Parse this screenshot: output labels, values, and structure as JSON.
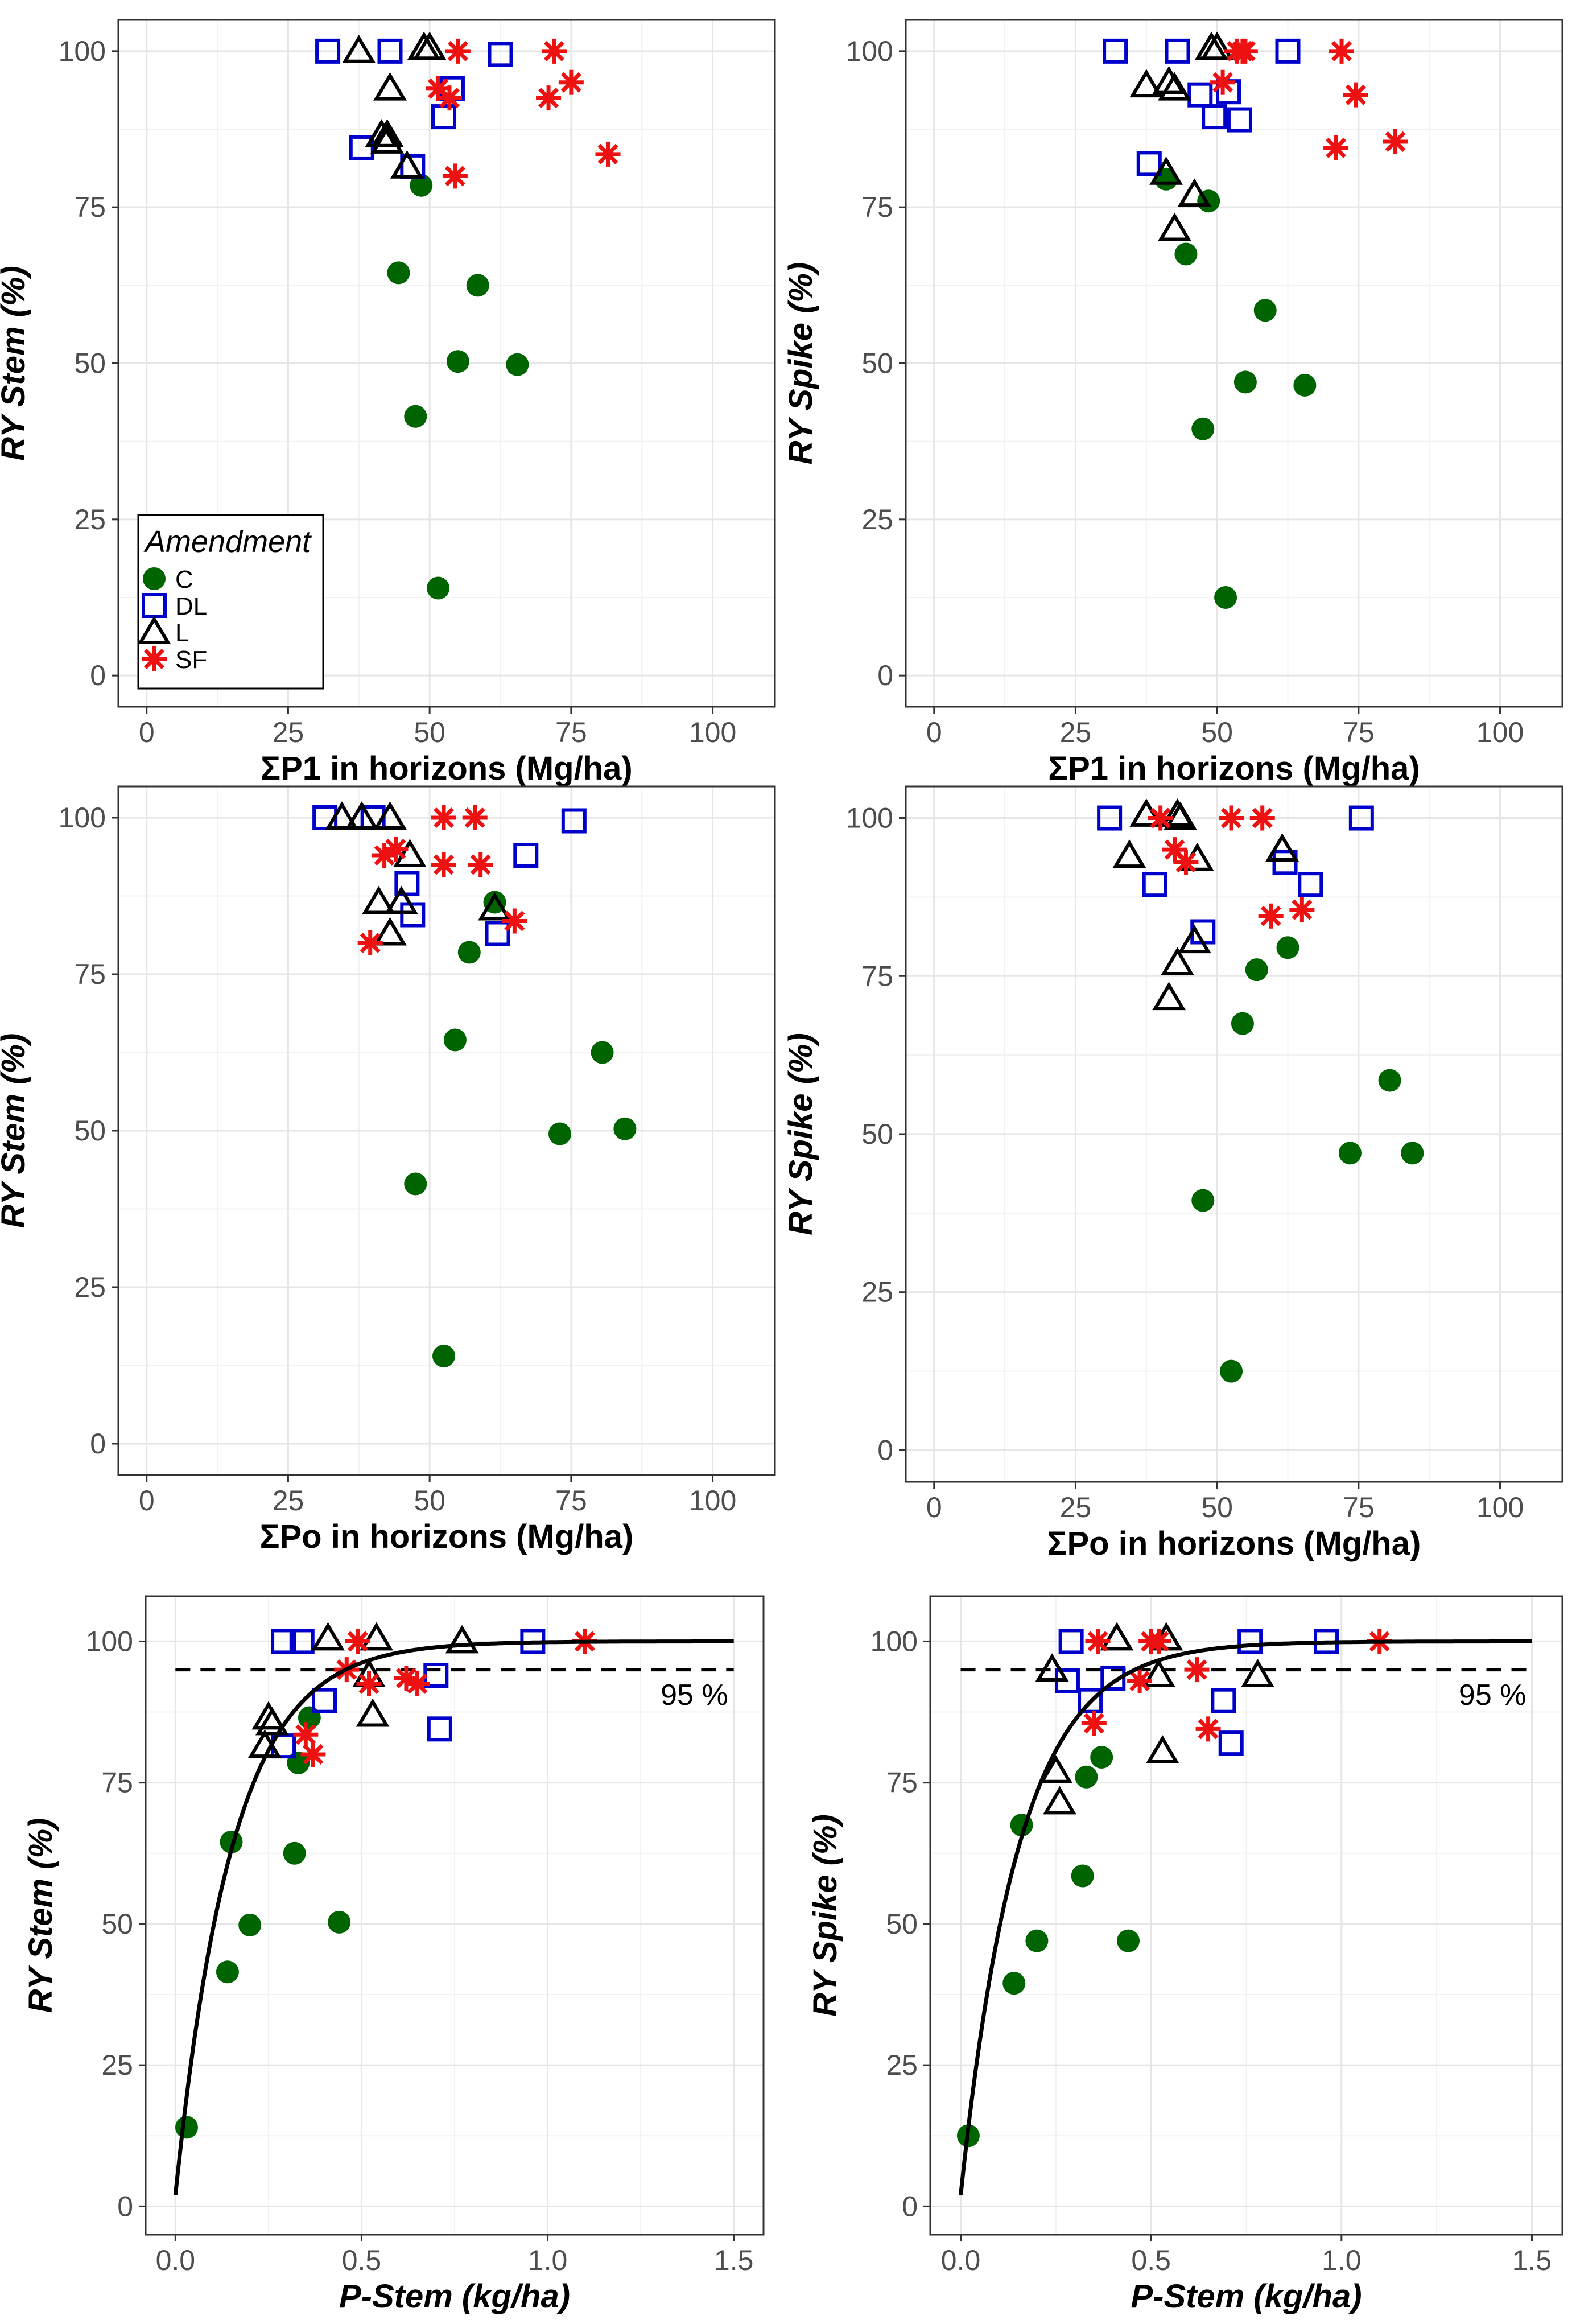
{
  "colors": {
    "C": "#006400",
    "DL": "#0000cd",
    "L": "#000000",
    "SF": "#ee1111"
  },
  "legend": {
    "title": "Amendment",
    "entries": [
      {
        "key": "C",
        "label": "C",
        "shape": "circle"
      },
      {
        "key": "DL",
        "label": "DL",
        "shape": "square"
      },
      {
        "key": "L",
        "label": "L",
        "shape": "triangle"
      },
      {
        "key": "SF",
        "label": "SF",
        "shape": "asterisk"
      }
    ]
  },
  "chart_data": [
    {
      "id": "p1-stem",
      "type": "scatter",
      "ylabel": "RY Stem (%)",
      "xlabel": "ΣP1 in horizons (Mg/ha)",
      "xlim": [
        -5,
        111
      ],
      "ylim": [
        -5,
        105
      ],
      "xticks": [
        0,
        25,
        50,
        75,
        100
      ],
      "xtick_labels": [
        "0",
        "25",
        "50",
        "75",
        "100"
      ],
      "yticks": [
        0,
        25,
        50,
        75,
        100
      ],
      "ytick_labels": [
        "0",
        "25",
        "50",
        "75",
        "100"
      ],
      "show_legend": true,
      "series": {
        "C": [
          [
            48.5,
            78.5
          ],
          [
            44.5,
            64.5
          ],
          [
            58.5,
            62.5
          ],
          [
            55,
            50.3
          ],
          [
            65.5,
            49.8
          ],
          [
            47.5,
            41.5
          ],
          [
            51.5,
            14
          ]
        ],
        "DL": [
          [
            32,
            100
          ],
          [
            43,
            100
          ],
          [
            62.5,
            99.5
          ],
          [
            54,
            94
          ],
          [
            52.5,
            89.5
          ],
          [
            38,
            84.5
          ],
          [
            47,
            81.5
          ]
        ],
        "L": [
          [
            37.5,
            100
          ],
          [
            49,
            100.5
          ],
          [
            50,
            100.5
          ],
          [
            43,
            94
          ],
          [
            41.5,
            86.5
          ],
          [
            42.5,
            86.5
          ],
          [
            42.5,
            85.5
          ],
          [
            46,
            81.5
          ]
        ],
        "SF": [
          [
            55,
            100
          ],
          [
            72,
            100
          ],
          [
            51.5,
            94
          ],
          [
            53.5,
            92.5
          ],
          [
            75,
            95
          ],
          [
            71,
            92.5
          ],
          [
            54.5,
            80
          ],
          [
            81.5,
            83.5
          ]
        ]
      }
    },
    {
      "id": "p1-spike",
      "type": "scatter",
      "ylabel": "RY Spike (%)",
      "xlabel": "ΣP1 in horizons (Mg/ha)",
      "xlim": [
        -5,
        111
      ],
      "ylim": [
        -5,
        105
      ],
      "xticks": [
        0,
        25,
        50,
        75,
        100
      ],
      "xtick_labels": [
        "0",
        "25",
        "50",
        "75",
        "100"
      ],
      "yticks": [
        0,
        25,
        50,
        75,
        100
      ],
      "ytick_labels": [
        "0",
        "25",
        "50",
        "75",
        "100"
      ],
      "show_legend": false,
      "series": {
        "C": [
          [
            41,
            79.5
          ],
          [
            48.5,
            76
          ],
          [
            44.5,
            67.5
          ],
          [
            58.5,
            58.5
          ],
          [
            55,
            47
          ],
          [
            65.5,
            46.5
          ],
          [
            47.5,
            39.5
          ],
          [
            51.5,
            12.5
          ]
        ],
        "DL": [
          [
            32,
            100
          ],
          [
            43,
            100
          ],
          [
            62.5,
            100
          ],
          [
            52,
            93.5
          ],
          [
            47,
            93
          ],
          [
            49.5,
            89.5
          ],
          [
            54,
            89
          ],
          [
            38,
            82
          ]
        ],
        "L": [
          [
            49,
            100.5
          ],
          [
            50,
            100.5
          ],
          [
            37.5,
            94.5
          ],
          [
            41.5,
            95
          ],
          [
            42.5,
            94
          ],
          [
            41,
            80.5
          ],
          [
            46,
            77
          ],
          [
            42.5,
            71.5
          ]
        ],
        "SF": [
          [
            53.5,
            100
          ],
          [
            54.5,
            100
          ],
          [
            55,
            100
          ],
          [
            72,
            100
          ],
          [
            51,
            95
          ],
          [
            74.5,
            93
          ],
          [
            71,
            84.5
          ],
          [
            81.5,
            85.5
          ]
        ]
      }
    },
    {
      "id": "po-stem",
      "type": "scatter",
      "ylabel": "RY Stem (%)",
      "xlabel": "ΣPo in horizons (Mg/ha)",
      "xlim": [
        -5,
        111
      ],
      "ylim": [
        -5,
        105
      ],
      "xticks": [
        0,
        25,
        50,
        75,
        100
      ],
      "xtick_labels": [
        "0",
        "25",
        "50",
        "75",
        "100"
      ],
      "yticks": [
        0,
        25,
        50,
        75,
        100
      ],
      "ytick_labels": [
        "0",
        "25",
        "50",
        "75",
        "100"
      ],
      "show_legend": false,
      "series": {
        "C": [
          [
            61.5,
            86.5
          ],
          [
            57,
            78.5
          ],
          [
            54.5,
            64.5
          ],
          [
            80.5,
            62.5
          ],
          [
            73,
            49.5
          ],
          [
            84.5,
            50.3
          ],
          [
            47.5,
            41.5
          ],
          [
            52.5,
            14
          ]
        ],
        "DL": [
          [
            31.5,
            100
          ],
          [
            40,
            100
          ],
          [
            75.5,
            99.5
          ],
          [
            67,
            94
          ],
          [
            46,
            89.5
          ],
          [
            47,
            84.5
          ],
          [
            62,
            81.5
          ]
        ],
        "L": [
          [
            34.5,
            100
          ],
          [
            38,
            100
          ],
          [
            43,
            100
          ],
          [
            46.5,
            94
          ],
          [
            41,
            86.5
          ],
          [
            45,
            86.5
          ],
          [
            61.5,
            85.5
          ],
          [
            43,
            81.5
          ]
        ],
        "SF": [
          [
            52.5,
            100
          ],
          [
            58,
            100
          ],
          [
            44,
            95
          ],
          [
            42,
            94
          ],
          [
            52.5,
            92.5
          ],
          [
            59,
            92.5
          ],
          [
            65,
            83.5
          ],
          [
            39.5,
            80
          ]
        ]
      }
    },
    {
      "id": "po-spike",
      "type": "scatter",
      "ylabel": "RY Spike (%)",
      "xlabel": "ΣPo in horizons (Mg/ha)",
      "xlim": [
        -5,
        111
      ],
      "ylim": [
        -5,
        105
      ],
      "xticks": [
        0,
        25,
        50,
        75,
        100
      ],
      "xtick_labels": [
        "0",
        "25",
        "50",
        "75",
        "100"
      ],
      "yticks": [
        0,
        25,
        50,
        75,
        100
      ],
      "ytick_labels": [
        "0",
        "25",
        "50",
        "75",
        "100"
      ],
      "show_legend": false,
      "series": {
        "C": [
          [
            62.5,
            79.5
          ],
          [
            57,
            76
          ],
          [
            54.5,
            67.5
          ],
          [
            80.5,
            58.5
          ],
          [
            73.5,
            47
          ],
          [
            84.5,
            47
          ],
          [
            47.5,
            39.5
          ],
          [
            52.5,
            12.5
          ]
        ],
        "DL": [
          [
            31,
            100
          ],
          [
            75.5,
            100
          ],
          [
            62,
            93
          ],
          [
            66.5,
            89.5
          ],
          [
            39,
            89.5
          ],
          [
            47.5,
            82
          ]
        ],
        "L": [
          [
            37.5,
            100.5
          ],
          [
            43,
            100.5
          ],
          [
            43.5,
            100
          ],
          [
            34.5,
            94
          ],
          [
            46.5,
            93.5
          ],
          [
            61.5,
            95
          ],
          [
            46,
            80.5
          ],
          [
            43,
            77
          ],
          [
            41.5,
            71.5
          ]
        ],
        "SF": [
          [
            40,
            100
          ],
          [
            52.5,
            100
          ],
          [
            58,
            100
          ],
          [
            42.5,
            95
          ],
          [
            44.5,
            93
          ],
          [
            59.5,
            84.5
          ],
          [
            65,
            85.5
          ]
        ]
      }
    },
    {
      "id": "pstem-stem",
      "type": "scatter",
      "ylabel": "RY Stem (%)",
      "xlabel": "P-Stem (kg/ha)",
      "xlim": [
        -0.08,
        1.58
      ],
      "ylim": [
        -5,
        108
      ],
      "xticks": [
        0,
        0.5,
        1,
        1.5
      ],
      "xtick_labels": [
        "0.0",
        "0.5",
        "1.0",
        "1.5"
      ],
      "yticks": [
        0,
        25,
        50,
        75,
        100
      ],
      "ytick_labels": [
        "0",
        "25",
        "50",
        "75",
        "100"
      ],
      "show_legend": false,
      "threshold": {
        "y": 95,
        "label": "95 %"
      },
      "fit_curve": {
        "model": "exponential plateau",
        "y_max": 100,
        "y0": 2,
        "k": 6.5,
        "x_range": [
          0,
          1.5
        ]
      },
      "series": {
        "C": [
          [
            0.03,
            14
          ],
          [
            0.14,
            41.5
          ],
          [
            0.15,
            64.5
          ],
          [
            0.2,
            49.8
          ],
          [
            0.32,
            62.5
          ],
          [
            0.44,
            50.3
          ],
          [
            0.33,
            78.5
          ],
          [
            0.36,
            86.5
          ]
        ],
        "DL": [
          [
            0.29,
            100
          ],
          [
            0.34,
            100
          ],
          [
            0.96,
            100
          ],
          [
            0.4,
            89.5
          ],
          [
            0.29,
            81.5
          ],
          [
            0.7,
            94
          ],
          [
            0.71,
            84.5
          ]
        ],
        "L": [
          [
            0.41,
            100.5
          ],
          [
            0.54,
            100.5
          ],
          [
            0.77,
            100
          ],
          [
            0.25,
            86.5
          ],
          [
            0.26,
            85.5
          ],
          [
            0.24,
            81.5
          ],
          [
            0.52,
            94
          ],
          [
            0.53,
            87
          ]
        ],
        "SF": [
          [
            0.49,
            100
          ],
          [
            1.1,
            100
          ],
          [
            0.46,
            95
          ],
          [
            0.52,
            92.5
          ],
          [
            0.62,
            93.5
          ],
          [
            0.65,
            92.5
          ],
          [
            0.35,
            83.5
          ],
          [
            0.37,
            80
          ]
        ]
      }
    },
    {
      "id": "pstem-spike",
      "type": "scatter",
      "ylabel": "RY Spike (%)",
      "xlabel": "P-Stem (kg/ha)",
      "xlim": [
        -0.08,
        1.58
      ],
      "ylim": [
        -5,
        108
      ],
      "xticks": [
        0,
        0.5,
        1,
        1.5
      ],
      "xtick_labels": [
        "0.0",
        "0.5",
        "1.0",
        "1.5"
      ],
      "yticks": [
        0,
        25,
        50,
        75,
        100
      ],
      "ytick_labels": [
        "0",
        "25",
        "50",
        "75",
        "100"
      ],
      "show_legend": false,
      "threshold": {
        "y": 95,
        "label": "95 %"
      },
      "fit_curve": {
        "model": "exponential plateau",
        "y_max": 100,
        "y0": 2,
        "k": 6.5,
        "x_range": [
          0,
          1.5
        ]
      },
      "series": {
        "C": [
          [
            0.02,
            12.5
          ],
          [
            0.14,
            39.5
          ],
          [
            0.16,
            67.5
          ],
          [
            0.2,
            47
          ],
          [
            0.32,
            58.5
          ],
          [
            0.44,
            47
          ],
          [
            0.33,
            76
          ],
          [
            0.37,
            79.5
          ]
        ],
        "DL": [
          [
            0.29,
            100
          ],
          [
            0.76,
            100
          ],
          [
            0.96,
            100
          ],
          [
            0.28,
            93
          ],
          [
            0.34,
            89.5
          ],
          [
            0.4,
            93.5
          ],
          [
            0.69,
            89.5
          ],
          [
            0.71,
            82
          ]
        ],
        "L": [
          [
            0.41,
            100.5
          ],
          [
            0.54,
            100.5
          ],
          [
            0.24,
            95
          ],
          [
            0.52,
            94
          ],
          [
            0.78,
            94
          ],
          [
            0.25,
            77
          ],
          [
            0.26,
            71.5
          ],
          [
            0.53,
            80.5
          ]
        ],
        "SF": [
          [
            0.36,
            100
          ],
          [
            0.5,
            100
          ],
          [
            0.52,
            100
          ],
          [
            1.1,
            100
          ],
          [
            0.47,
            93
          ],
          [
            0.62,
            95
          ],
          [
            0.35,
            85.5
          ],
          [
            0.65,
            84.5
          ]
        ]
      }
    }
  ]
}
